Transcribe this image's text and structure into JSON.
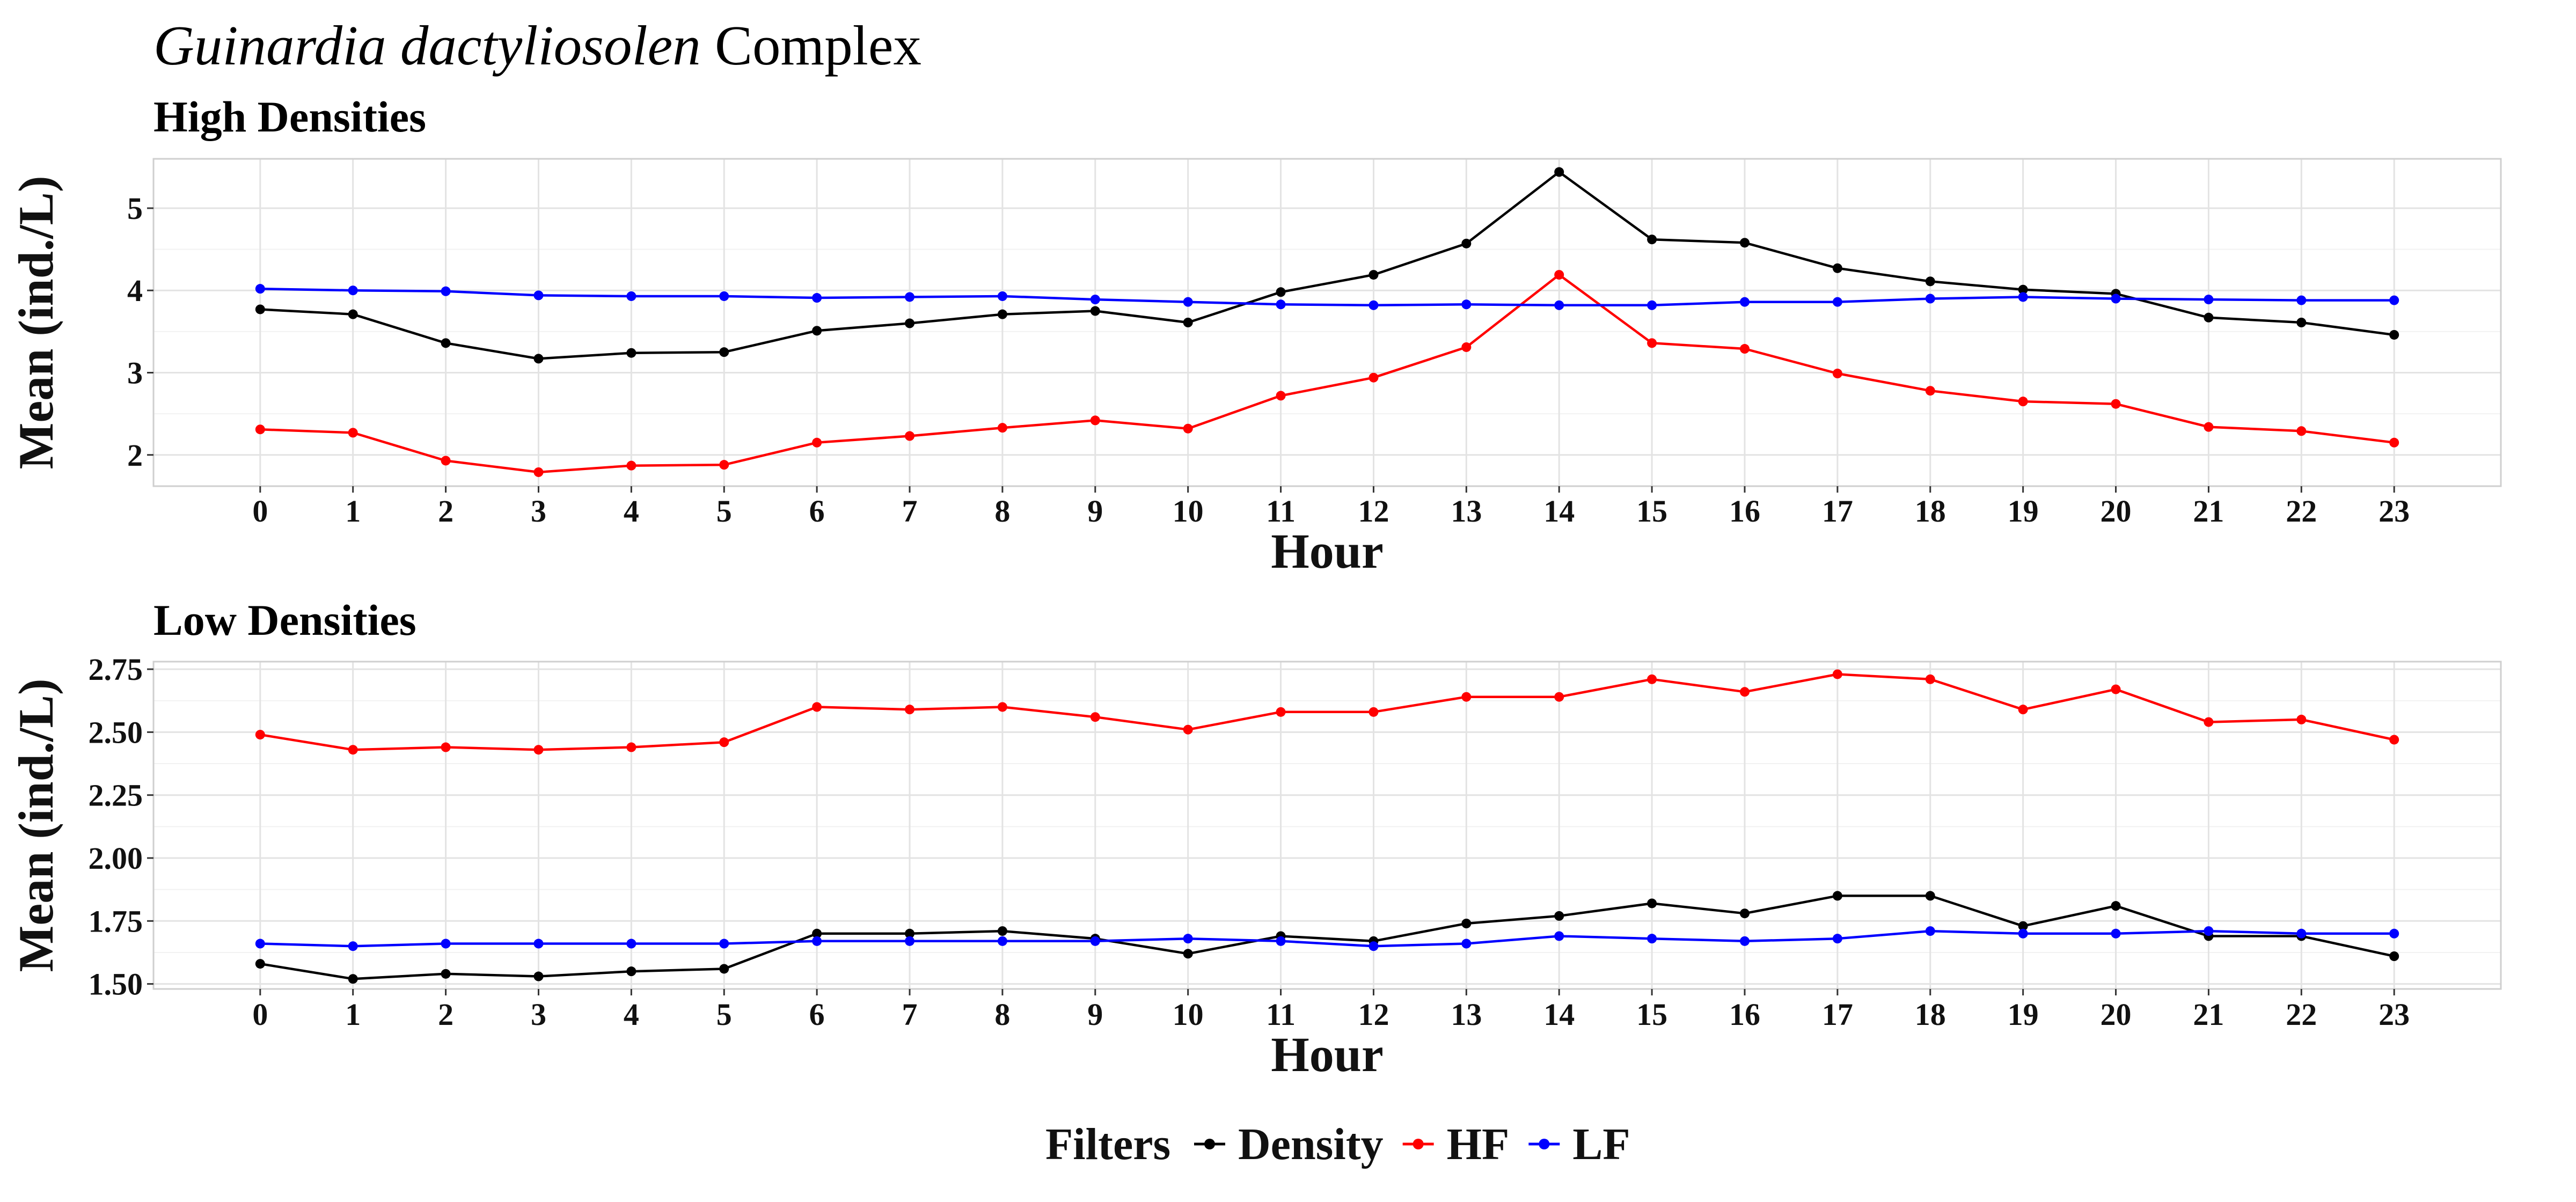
{
  "figure": {
    "title_italic": "Guinardia dactyliosolen",
    "title_rest": " Complex",
    "legend_title": "Filters"
  },
  "colors": {
    "Density": "#000000",
    "HF": "#ff0000",
    "LF": "#0000ff"
  },
  "chart_data": [
    {
      "type": "line",
      "title": "High Densities",
      "xlabel": "Hour",
      "ylabel": "Mean (ind./L)",
      "x": [
        0,
        1,
        2,
        3,
        4,
        5,
        6,
        7,
        8,
        9,
        10,
        11,
        12,
        13,
        14,
        15,
        16,
        17,
        18,
        19,
        20,
        21,
        22,
        23
      ],
      "xlim": [
        -1.15,
        24.15
      ],
      "ylim": [
        1.62,
        5.6
      ],
      "yticks": [
        2,
        3,
        4,
        5
      ],
      "ytick_labels": [
        "2",
        "3",
        "4",
        "5"
      ],
      "grid": true,
      "series": [
        {
          "name": "Density",
          "color": "#000000",
          "values": [
            3.77,
            3.71,
            3.36,
            3.17,
            3.24,
            3.25,
            3.51,
            3.6,
            3.71,
            3.75,
            3.61,
            3.98,
            4.19,
            4.57,
            5.44,
            4.62,
            4.58,
            4.27,
            4.11,
            4.01,
            3.96,
            3.67,
            3.61,
            3.46
          ]
        },
        {
          "name": "HF",
          "color": "#ff0000",
          "values": [
            2.31,
            2.27,
            1.93,
            1.79,
            1.87,
            1.88,
            2.15,
            2.23,
            2.33,
            2.42,
            2.32,
            2.72,
            2.94,
            3.31,
            4.19,
            3.36,
            3.29,
            2.99,
            2.78,
            2.65,
            2.62,
            2.34,
            2.29,
            2.15
          ]
        },
        {
          "name": "LF",
          "color": "#0000ff",
          "values": [
            4.02,
            4.0,
            3.99,
            3.94,
            3.93,
            3.93,
            3.91,
            3.92,
            3.93,
            3.89,
            3.86,
            3.83,
            3.82,
            3.83,
            3.82,
            3.82,
            3.86,
            3.86,
            3.9,
            3.92,
            3.9,
            3.89,
            3.88,
            3.88
          ]
        }
      ]
    },
    {
      "type": "line",
      "title": "Low Densities",
      "xlabel": "Hour",
      "ylabel": "Mean (ind./L)",
      "x": [
        0,
        1,
        2,
        3,
        4,
        5,
        6,
        7,
        8,
        9,
        10,
        11,
        12,
        13,
        14,
        15,
        16,
        17,
        18,
        19,
        20,
        21,
        22,
        23
      ],
      "xlim": [
        -1.15,
        24.15
      ],
      "ylim": [
        1.48,
        2.78
      ],
      "yticks": [
        1.5,
        1.75,
        2.0,
        2.25,
        2.5,
        2.75
      ],
      "ytick_labels": [
        "1.50",
        "1.75",
        "2.00",
        "2.25",
        "2.50",
        "2.75"
      ],
      "grid": true,
      "series": [
        {
          "name": "Density",
          "color": "#000000",
          "values": [
            1.58,
            1.52,
            1.54,
            1.53,
            1.55,
            1.56,
            1.7,
            1.7,
            1.71,
            1.68,
            1.62,
            1.69,
            1.67,
            1.74,
            1.77,
            1.82,
            1.78,
            1.85,
            1.85,
            1.73,
            1.81,
            1.69,
            1.69,
            1.61
          ]
        },
        {
          "name": "HF",
          "color": "#ff0000",
          "values": [
            2.49,
            2.43,
            2.44,
            2.43,
            2.44,
            2.46,
            2.6,
            2.59,
            2.6,
            2.56,
            2.51,
            2.58,
            2.58,
            2.64,
            2.64,
            2.71,
            2.66,
            2.73,
            2.71,
            2.59,
            2.67,
            2.54,
            2.55,
            2.47
          ]
        },
        {
          "name": "LF",
          "color": "#0000ff",
          "values": [
            1.66,
            1.65,
            1.66,
            1.66,
            1.66,
            1.66,
            1.67,
            1.67,
            1.67,
            1.67,
            1.68,
            1.67,
            1.65,
            1.66,
            1.69,
            1.68,
            1.67,
            1.68,
            1.71,
            1.7,
            1.7,
            1.71,
            1.7,
            1.7
          ]
        }
      ]
    }
  ]
}
